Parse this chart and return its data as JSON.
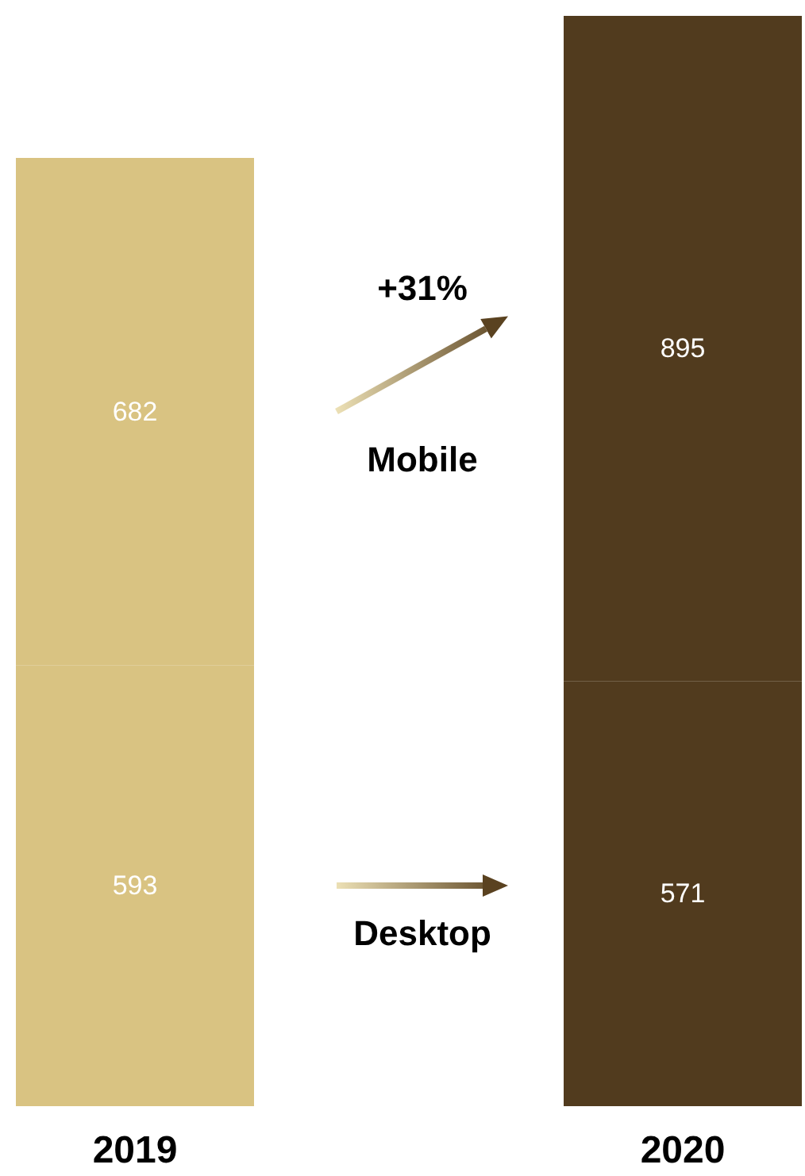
{
  "chart_data": {
    "type": "bar",
    "stacked": true,
    "data_labels": true,
    "categories": [
      "2019",
      "2020"
    ],
    "series": [
      {
        "name": "Desktop",
        "colors": [
          "#d9c382",
          "#513b1e"
        ],
        "values": [
          593,
          571
        ]
      },
      {
        "name": "Mobile",
        "colors": [
          "#d9c382",
          "#513b1e"
        ],
        "values": [
          682,
          895
        ]
      }
    ],
    "annotations": [
      "+31%"
    ]
  }
}
